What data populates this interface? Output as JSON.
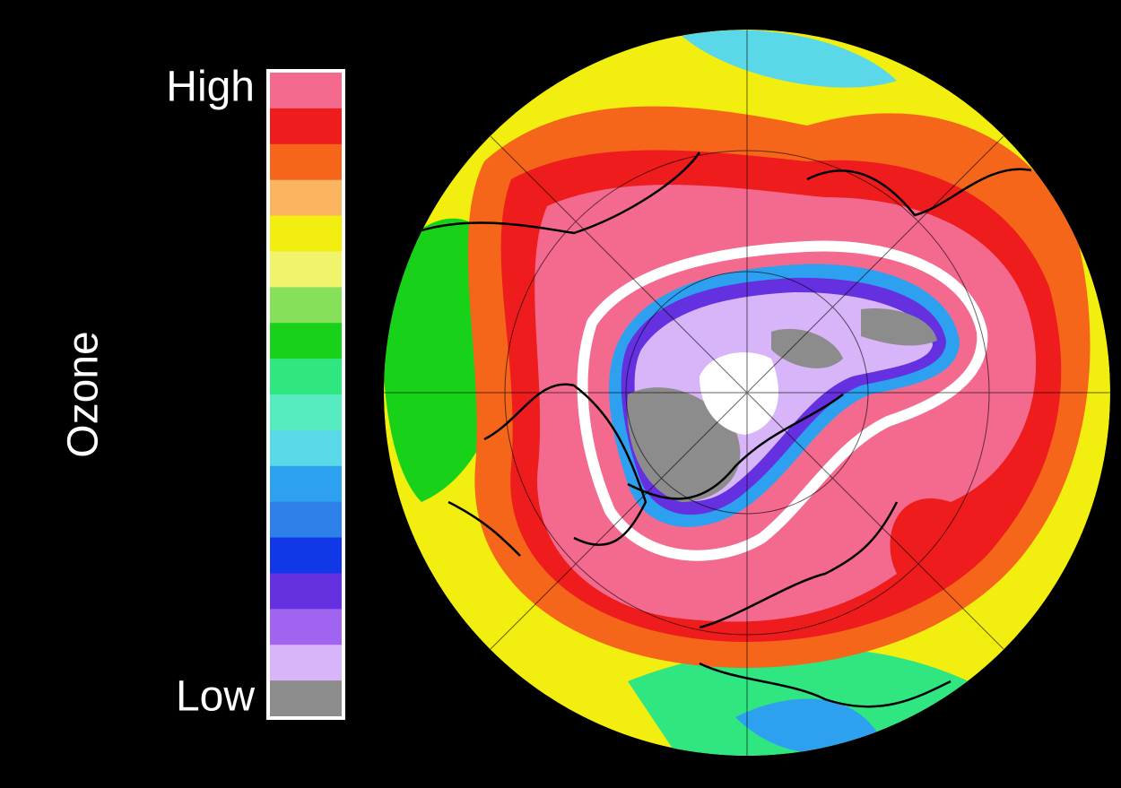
{
  "legend": {
    "title": "Ozone",
    "high_label": "High",
    "low_label": "Low",
    "colors": [
      "#f46a8f",
      "#ee1c1c",
      "#f5651a",
      "#fbb460",
      "#f2ee10",
      "#f0f46a",
      "#86e05a",
      "#18d21a",
      "#30e680",
      "#56ecc0",
      "#5ad8e8",
      "#2ea0f0",
      "#2c80e8",
      "#1038e6",
      "#6430e0",
      "#a064f0",
      "#d8b4f8",
      "#8c8c8c"
    ]
  }
}
